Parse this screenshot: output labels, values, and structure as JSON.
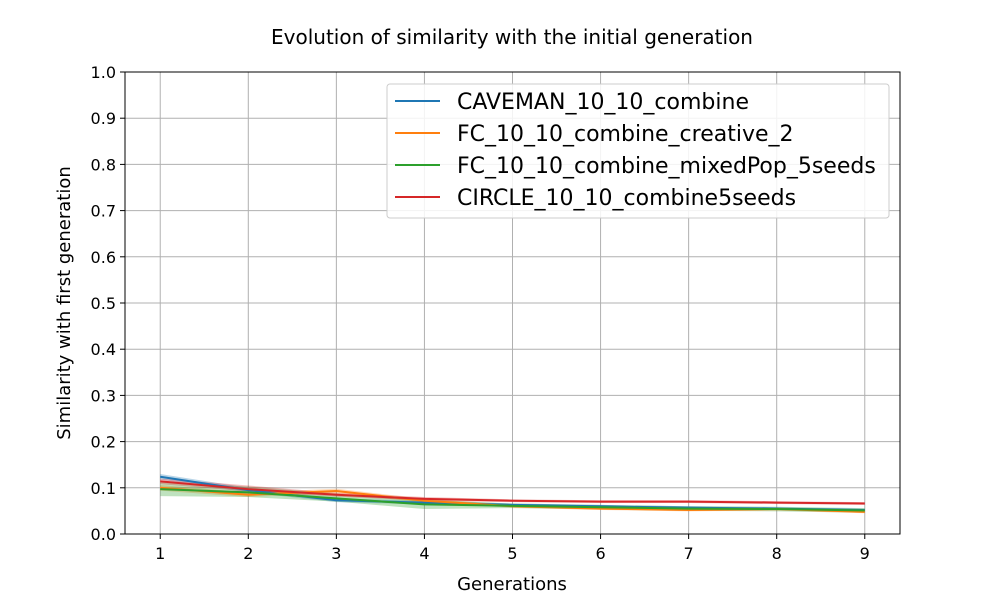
{
  "chart_data": {
    "type": "line",
    "title": "Evolution of similarity with the initial generation",
    "xlabel": "Generations",
    "ylabel": "Similarity with first generation",
    "xlim": [
      0.6,
      9.4
    ],
    "ylim": [
      0.0,
      1.0
    ],
    "x": [
      1,
      2,
      3,
      4,
      5,
      6,
      7,
      8,
      9
    ],
    "xticks": [
      "1",
      "2",
      "3",
      "4",
      "5",
      "6",
      "7",
      "8",
      "9"
    ],
    "yticks": [
      "0.0",
      "0.1",
      "0.2",
      "0.3",
      "0.4",
      "0.5",
      "0.6",
      "0.7",
      "0.8",
      "0.9",
      "1.0"
    ],
    "grid": true,
    "legend_position": "top-right",
    "series": [
      {
        "name": "CAVEMAN_10_10_combine",
        "color": "#1f77b4",
        "values": [
          0.124,
          0.095,
          0.073,
          0.068,
          0.063,
          0.06,
          0.057,
          0.055,
          0.052
        ],
        "band_low": [
          0.118,
          0.09,
          0.069,
          0.064,
          0.06,
          0.057,
          0.054,
          0.052,
          0.049
        ],
        "band_high": [
          0.13,
          0.1,
          0.077,
          0.072,
          0.066,
          0.063,
          0.06,
          0.058,
          0.055
        ]
      },
      {
        "name": "FC_10_10_combine_creative_2",
        "color": "#ff7f0e",
        "values": [
          0.1,
          0.085,
          0.093,
          0.072,
          0.06,
          0.055,
          0.052,
          0.054,
          0.048
        ],
        "band_low": [
          0.094,
          0.08,
          0.088,
          0.068,
          0.057,
          0.052,
          0.049,
          0.051,
          0.045
        ],
        "band_high": [
          0.106,
          0.09,
          0.098,
          0.076,
          0.063,
          0.058,
          0.055,
          0.057,
          0.051
        ]
      },
      {
        "name": "FC_10_10_combine_mixedPop_5seeds",
        "color": "#2ca02c",
        "values": [
          0.097,
          0.09,
          0.077,
          0.064,
          0.061,
          0.058,
          0.055,
          0.054,
          0.051
        ],
        "band_low": [
          0.082,
          0.08,
          0.07,
          0.054,
          0.056,
          0.053,
          0.05,
          0.049,
          0.046
        ],
        "band_high": [
          0.112,
          0.103,
          0.087,
          0.074,
          0.066,
          0.063,
          0.06,
          0.059,
          0.056
        ]
      },
      {
        "name": "CIRCLE_10_10_combine5seeds",
        "color": "#d62728",
        "values": [
          0.114,
          0.097,
          0.085,
          0.076,
          0.072,
          0.07,
          0.07,
          0.068,
          0.066
        ],
        "band_low": [
          0.108,
          0.092,
          0.081,
          0.072,
          0.069,
          0.067,
          0.067,
          0.065,
          0.063
        ],
        "band_high": [
          0.12,
          0.105,
          0.089,
          0.08,
          0.075,
          0.073,
          0.073,
          0.071,
          0.069
        ]
      }
    ]
  }
}
